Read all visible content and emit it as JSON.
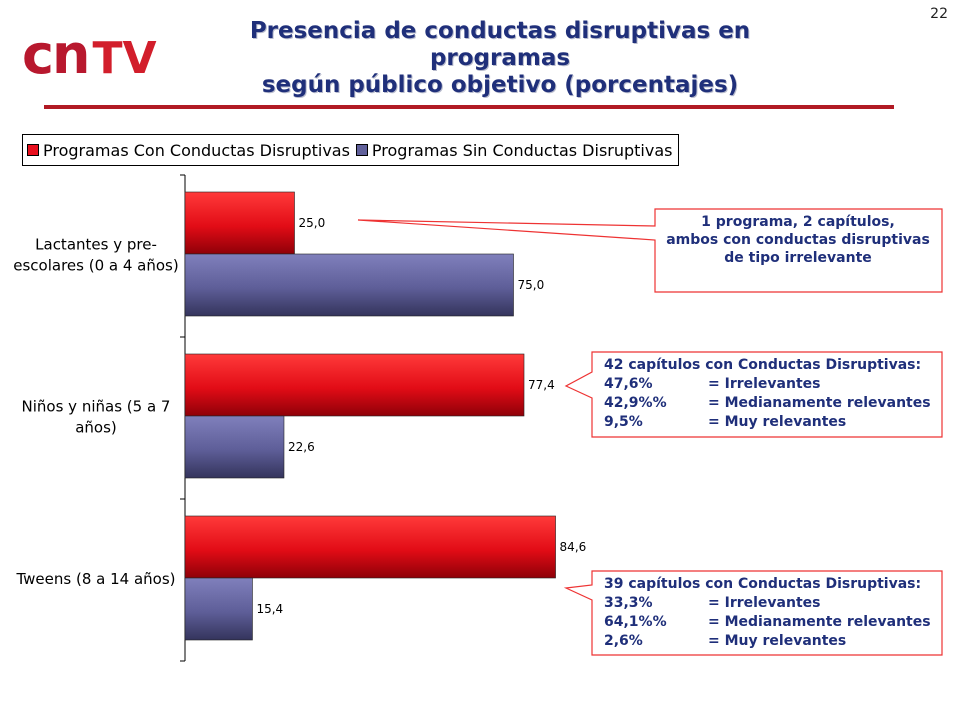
{
  "slide_number": "22",
  "logo": {
    "cn": "cn",
    "tv": "TV"
  },
  "title_line1": "Presencia de conductas disruptivas en programas",
  "title_line2": "según público objetivo (porcentajes)",
  "colors": {
    "series_con": "#e8101e",
    "series_sin": "#60609a",
    "title": "#1f2f7a",
    "accent": "#b11a24"
  },
  "chart_data": {
    "type": "bar",
    "orientation": "horizontal",
    "categories": [
      "Lactantes y pre-escolares (0 a 4 años)",
      "Niños y niñas (5 a 7 años)",
      "Tweens (8 a 14 años)"
    ],
    "category_label_lines": [
      [
        "Lactantes y pre-",
        "escolares (0 a 4 años)"
      ],
      [
        "Niños y niñas (5 a 7",
        "años)"
      ],
      [
        "Tweens (8 a 14 años)"
      ]
    ],
    "series": [
      {
        "name": "Programas Con Conductas Disruptivas",
        "values": [
          25.0,
          77.4,
          84.6
        ],
        "labels": [
          "25,0",
          "77,4",
          "84,6"
        ],
        "color": "#e8101e"
      },
      {
        "name": "Programas Sin Conductas Disruptivas",
        "values": [
          75.0,
          22.6,
          15.4
        ],
        "labels": [
          "75,0",
          "22,6",
          "15,4"
        ],
        "color": "#60609a"
      }
    ],
    "xlim": [
      0,
      100
    ],
    "legend_position": "top-left",
    "grid": false
  },
  "callouts": [
    {
      "lines": [
        "1 programa, 2 capítulos,",
        "ambos con conductas disruptivas",
        "de tipo irrelevante"
      ]
    },
    {
      "heading": "42 capítulos con Conductas Disruptivas:",
      "rows": [
        {
          "pct": "47,6%",
          "desc": "= Irrelevantes"
        },
        {
          "pct": "42,9%%",
          "desc": "= Medianamente relevantes"
        },
        {
          "pct": "9,5%",
          "desc": "= Muy relevantes"
        }
      ]
    },
    {
      "heading": "39 capítulos con Conductas Disruptivas:",
      "rows": [
        {
          "pct": "33,3%",
          "desc": "= Irrelevantes"
        },
        {
          "pct": "64,1%%",
          "desc": "= Medianamente relevantes"
        },
        {
          "pct": "2,6%",
          "desc": "= Muy relevantes"
        }
      ]
    }
  ]
}
